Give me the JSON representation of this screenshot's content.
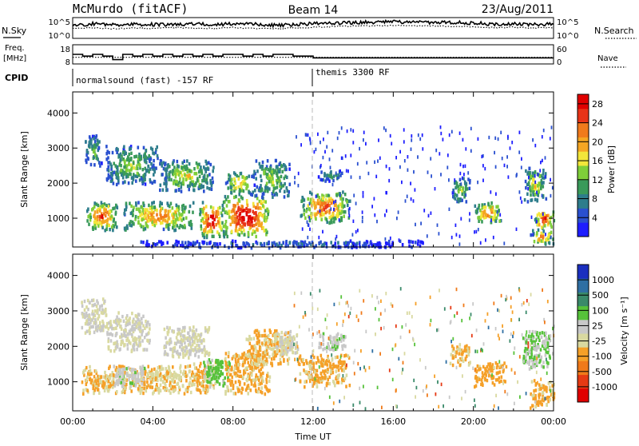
{
  "header": {
    "station": "McMurdo (fitACF)",
    "beam": "Beam 14",
    "date": "23/Aug/2011"
  },
  "colors": {
    "power_scale": [
      "#1e1eff",
      "#2a50d0",
      "#2e7d8c",
      "#3a9a5a",
      "#7fce3a",
      "#f2e63a",
      "#f5a623",
      "#f07a1c",
      "#e83418",
      "#e00000"
    ],
    "velocity_scale": [
      "#1b2fbf",
      "#2f6fa3",
      "#3a8a6a",
      "#56c23a",
      "#c8c8c8",
      "#d9d9a0",
      "#f5a028",
      "#f07a1a",
      "#e63a14",
      "#e00000"
    ],
    "grid_dash": "#bbbbbb"
  },
  "chart_data": [
    {
      "type": "line",
      "name": "noise_panel",
      "left_label": "N.Sky",
      "right_label": "N.Search",
      "left_ticks": [
        "10^5",
        "10^0"
      ],
      "right_ticks": [
        "10^5",
        "10^0"
      ],
      "x": [
        0,
        1,
        2,
        3,
        4,
        5,
        6,
        7,
        8,
        9,
        10,
        11,
        12,
        13,
        14,
        15,
        16,
        17,
        18,
        19,
        20,
        21,
        22,
        23,
        24
      ],
      "series": [
        {
          "name": "N.Sky",
          "style": "solid",
          "values": [
            3.2,
            3.6,
            3.3,
            3.5,
            3.4,
            3.4,
            3.6,
            3.3,
            3.7,
            3.5,
            3.2,
            3.4,
            3.6,
            3.8,
            3.9,
            4.0,
            4.1,
            4.0,
            3.9,
            3.9,
            3.8,
            3.5,
            3.6,
            3.4,
            3.5
          ]
        },
        {
          "name": "N.Search",
          "style": "dotted",
          "values": [
            2.4,
            2.5,
            2.3,
            2.5,
            2.4,
            2.6,
            2.5,
            2.4,
            2.6,
            2.4,
            2.3,
            2.5,
            2.7,
            2.9,
            3.0,
            3.1,
            3.2,
            3.1,
            3.0,
            2.9,
            2.8,
            2.6,
            2.7,
            2.5,
            2.6
          ]
        }
      ],
      "ylim": [
        0,
        5
      ]
    },
    {
      "type": "line",
      "name": "freq_panel",
      "left_label_line1": "Freq.",
      "left_label_line2": "[MHz]",
      "right_label": "Nave",
      "left_ticks": [
        "18",
        "8"
      ],
      "right_ticks": [
        "60",
        "0"
      ],
      "series": [
        {
          "name": "Freq.",
          "style": "solid",
          "x": [
            0,
            0.5,
            1,
            1.5,
            2,
            2.5,
            3,
            3.5,
            4,
            4.5,
            5,
            5.5,
            6,
            6.5,
            7,
            7.5,
            8,
            8.5,
            9,
            9.5,
            10,
            11,
            11.9,
            12,
            13,
            14,
            16,
            18,
            20,
            22,
            24
          ],
          "values": [
            13,
            12,
            13,
            12,
            10,
            13,
            12,
            13,
            12,
            13,
            12,
            13,
            12,
            13,
            12,
            13,
            13,
            12,
            13,
            12,
            13,
            12,
            12,
            11,
            11,
            11,
            11,
            11,
            11,
            11,
            11
          ]
        },
        {
          "name": "Nave",
          "style": "dotted",
          "x": [
            0,
            12,
            24
          ],
          "values": [
            20,
            20,
            20
          ]
        }
      ],
      "ylim": [
        8,
        18
      ]
    },
    {
      "type": "table",
      "name": "cpid",
      "label": "CPID",
      "entries": [
        {
          "start_hour": 0,
          "text": "normalsound (fast) -157 RF"
        },
        {
          "start_hour": 12,
          "text": "themis 3300 RF"
        }
      ]
    },
    {
      "type": "heatmap",
      "name": "power_panel",
      "ylabel": "Slant Range [km]",
      "yticks": [
        "1000",
        "2000",
        "3000",
        "4000"
      ],
      "ylim": [
        180,
        4600
      ],
      "xlim": [
        0,
        24
      ],
      "colorbar_label": "Power [dB]",
      "colorbar_ticks": [
        "4",
        "8",
        "12",
        "16",
        "20",
        "24",
        "28"
      ],
      "clim": [
        0,
        30
      ],
      "blobs": [
        {
          "h0": 0.6,
          "h1": 2.2,
          "r0": 700,
          "r1": 1500,
          "peak": 24
        },
        {
          "h0": 0.6,
          "h1": 1.4,
          "r0": 2500,
          "r1": 3400,
          "peak": 12
        },
        {
          "h0": 1.6,
          "h1": 4.2,
          "r0": 2000,
          "r1": 3100,
          "peak": 14
        },
        {
          "h0": 2.5,
          "h1": 6.0,
          "r0": 700,
          "r1": 1500,
          "peak": 22
        },
        {
          "h0": 4.3,
          "h1": 7.0,
          "r0": 1800,
          "r1": 2700,
          "peak": 16
        },
        {
          "h0": 6.3,
          "h1": 7.5,
          "r0": 500,
          "r1": 1500,
          "peak": 29
        },
        {
          "h0": 7.4,
          "h1": 9.8,
          "r0": 500,
          "r1": 1700,
          "peak": 30
        },
        {
          "h0": 7.6,
          "h1": 9.0,
          "r0": 1700,
          "r1": 2400,
          "peak": 18
        },
        {
          "h0": 9.0,
          "h1": 10.8,
          "r0": 1600,
          "r1": 2700,
          "peak": 14
        },
        {
          "h0": 11.3,
          "h1": 13.8,
          "r0": 900,
          "r1": 1800,
          "peak": 24
        },
        {
          "h0": 12.2,
          "h1": 13.4,
          "r0": 2100,
          "r1": 2400,
          "peak": 10
        },
        {
          "h0": 18.9,
          "h1": 19.8,
          "r0": 1500,
          "r1": 2200,
          "peak": 14
        },
        {
          "h0": 20.0,
          "h1": 21.4,
          "r0": 900,
          "r1": 1500,
          "peak": 22
        },
        {
          "h0": 22.5,
          "h1": 23.6,
          "r0": 1500,
          "r1": 2500,
          "peak": 16
        },
        {
          "h0": 23.0,
          "h1": 24.0,
          "r0": 700,
          "r1": 1300,
          "peak": 26
        },
        {
          "h0": 22.8,
          "h1": 24.0,
          "r0": 300,
          "r1": 700,
          "peak": 22
        },
        {
          "h0": 3.0,
          "h1": 17.5,
          "r0": 200,
          "r1": 400,
          "peak": 6
        }
      ]
    },
    {
      "type": "heatmap",
      "name": "velocity_panel",
      "ylabel": "Slant Range [km]",
      "yticks": [
        "1000",
        "2000",
        "3000",
        "4000"
      ],
      "ylim": [
        180,
        4600
      ],
      "xlim": [
        0,
        24
      ],
      "xticks": [
        "00:00",
        "04:00",
        "08:00",
        "12:00",
        "16:00",
        "20:00",
        "00:00"
      ],
      "xlabel": "Time UT",
      "colorbar_label": "Velocity [m s⁻¹]",
      "colorbar_ticks": [
        "1000",
        "500",
        "100",
        "25",
        "-25",
        "-100",
        "-500",
        "-1000"
      ],
      "clim": [
        -1200,
        1200
      ],
      "blobs": [
        {
          "h0": 0.4,
          "h1": 1.6,
          "r0": 2400,
          "r1": 3400,
          "v": 0
        },
        {
          "h0": 1.6,
          "h1": 3.8,
          "r0": 1900,
          "r1": 3000,
          "v": 10
        },
        {
          "h0": 0.4,
          "h1": 2.6,
          "r0": 700,
          "r1": 1500,
          "v": -250
        },
        {
          "h0": 2.4,
          "h1": 5.8,
          "r0": 700,
          "r1": 1500,
          "v": -200
        },
        {
          "h0": 2.0,
          "h1": 3.6,
          "r0": 900,
          "r1": 1500,
          "v": 150
        },
        {
          "h0": 4.5,
          "h1": 6.8,
          "r0": 1700,
          "r1": 2600,
          "v": 0
        },
        {
          "h0": 5.5,
          "h1": 7.2,
          "r0": 700,
          "r1": 1600,
          "v": -250
        },
        {
          "h0": 6.5,
          "h1": 7.8,
          "r0": 900,
          "r1": 1700,
          "v": 300
        },
        {
          "h0": 7.5,
          "h1": 9.8,
          "r0": 700,
          "r1": 1900,
          "v": -300
        },
        {
          "h0": 8.6,
          "h1": 10.8,
          "r0": 1500,
          "r1": 2500,
          "v": -250
        },
        {
          "h0": 10.0,
          "h1": 11.2,
          "r0": 1800,
          "r1": 2500,
          "v": 0
        },
        {
          "h0": 11.2,
          "h1": 13.8,
          "r0": 900,
          "r1": 1800,
          "v": -300
        },
        {
          "h0": 12.2,
          "h1": 13.6,
          "r0": 1900,
          "r1": 2400,
          "v": 150
        },
        {
          "h0": 18.8,
          "h1": 19.8,
          "r0": 1500,
          "r1": 2100,
          "v": -250
        },
        {
          "h0": 20.0,
          "h1": 21.6,
          "r0": 900,
          "r1": 1600,
          "v": -350
        },
        {
          "h0": 22.4,
          "h1": 23.8,
          "r0": 1400,
          "r1": 2500,
          "v": 250
        },
        {
          "h0": 22.8,
          "h1": 24.0,
          "r0": 300,
          "r1": 1100,
          "v": -300
        }
      ]
    }
  ]
}
